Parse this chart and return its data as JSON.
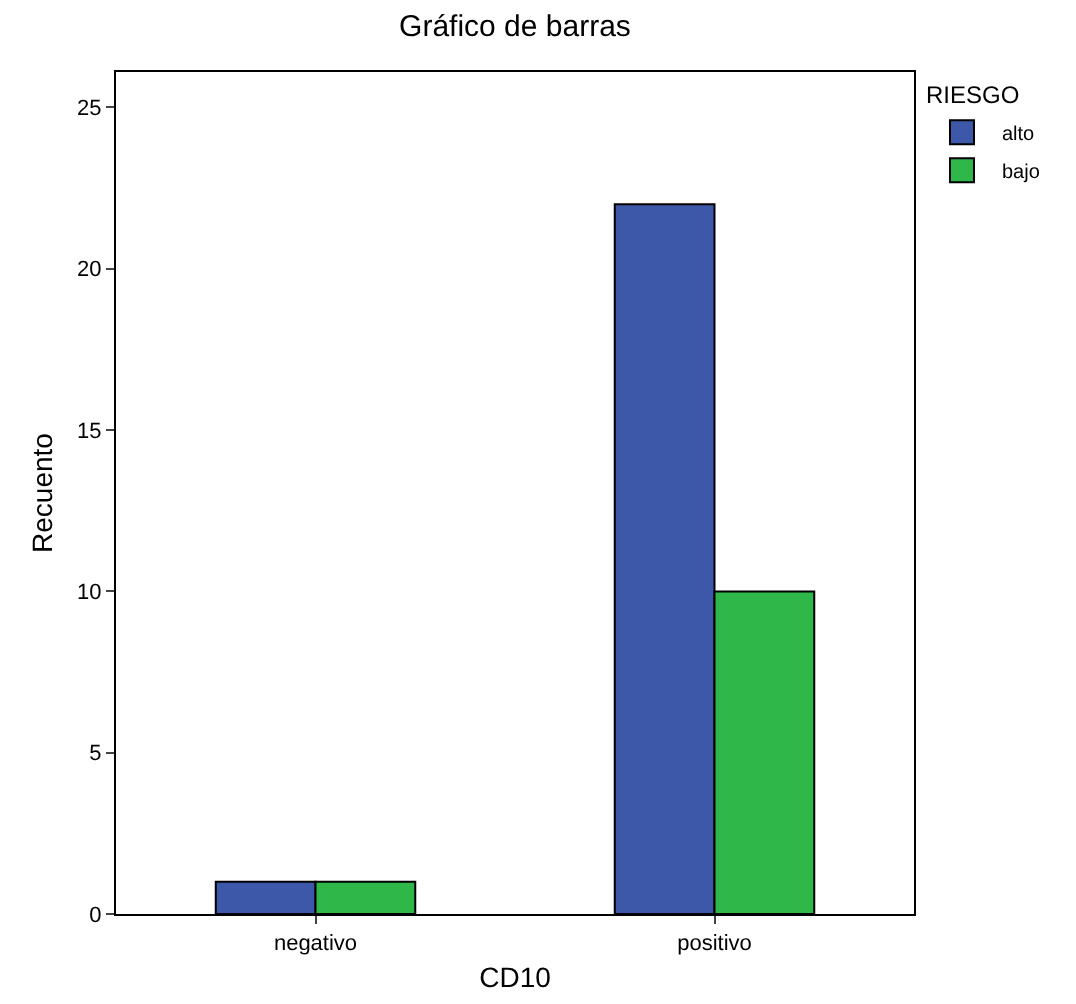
{
  "chart_data": {
    "type": "bar",
    "title": "Gráfico de barras",
    "xlabel": "CD10",
    "ylabel": "Recuento",
    "legend_title": "RIESGO",
    "categories": [
      "negativo",
      "positivo"
    ],
    "series": [
      {
        "name": "alto",
        "color": "#3e58a9",
        "values": [
          1,
          22
        ]
      },
      {
        "name": "bajo",
        "color": "#2fb74a",
        "values": [
          1,
          10
        ]
      }
    ],
    "ylim": [
      0,
      26.1
    ],
    "yticks": [
      0,
      5,
      10,
      15,
      20,
      25
    ],
    "grid": false,
    "legend": "top right"
  }
}
